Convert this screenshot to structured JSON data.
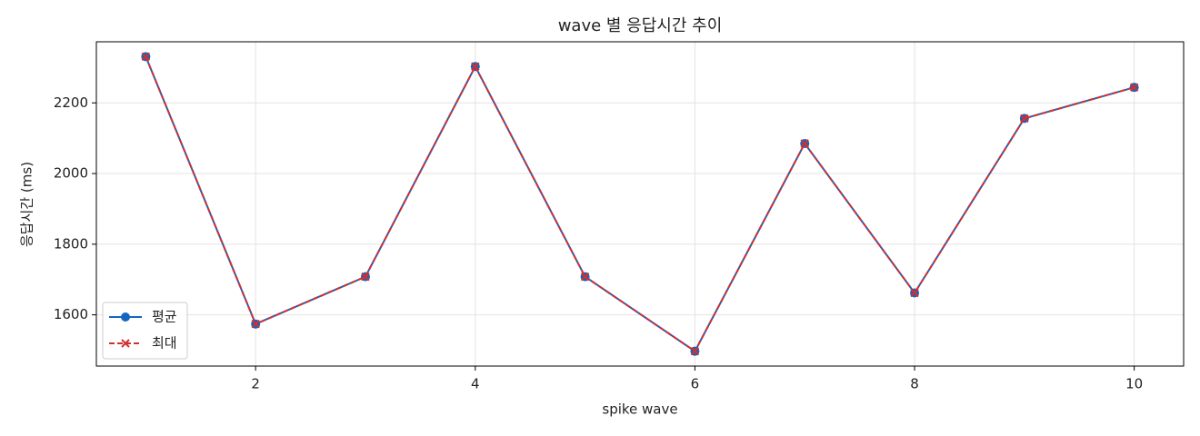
{
  "chart_data": {
    "type": "line",
    "title": "wave 별 응답시간 추이",
    "x_label": "spike wave",
    "y_label": "응답시간 (ms)",
    "x": [
      1,
      2,
      3,
      4,
      5,
      6,
      7,
      8,
      9,
      10
    ],
    "series": [
      {
        "name": "평균",
        "color": "#1565c0",
        "marker": "o",
        "dash": false,
        "values": [
          2331,
          1574,
          1708,
          2303,
          1708,
          1497,
          2085,
          1662,
          2156,
          2244
        ]
      },
      {
        "name": "최대",
        "color": "#d32f2f",
        "marker": "x",
        "dash": true,
        "values": [
          2331,
          1574,
          1708,
          2303,
          1708,
          1497,
          2085,
          1662,
          2156,
          2244
        ]
      }
    ],
    "xlim": [
      0.55,
      10.45
    ],
    "xticks": [
      2,
      4,
      6,
      8,
      10
    ],
    "ylim": [
      1455,
      2373
    ],
    "yticks": [
      1600,
      1800,
      2000,
      2200
    ],
    "grid": true,
    "legend": "lower left"
  }
}
